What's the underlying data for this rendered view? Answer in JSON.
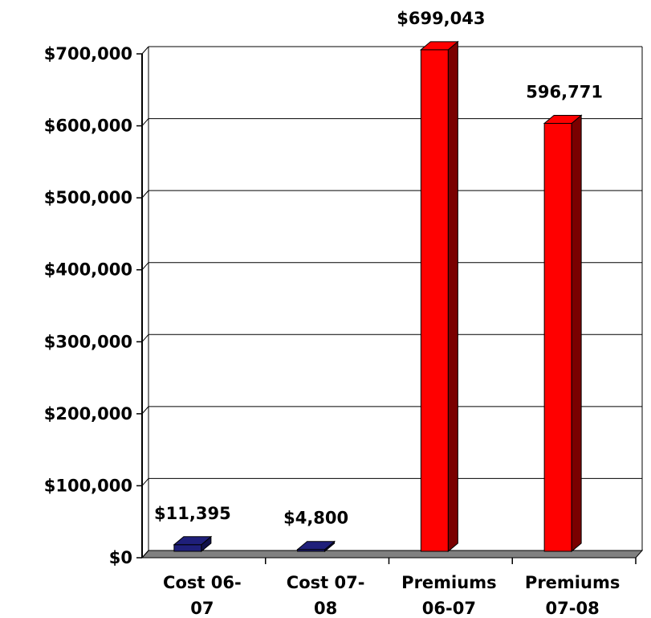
{
  "chart_data": {
    "type": "bar",
    "title": "",
    "xlabel": "",
    "ylabel": "",
    "categories": [
      [
        "Cost 06-",
        "07"
      ],
      [
        "Cost 07-",
        "08"
      ],
      [
        "Premiums",
        "06-07"
      ],
      [
        "Premiums",
        "07-08"
      ]
    ],
    "values": [
      11395,
      4800,
      699043,
      596771
    ],
    "data_labels": [
      "$11,395",
      "$4,800",
      "$699,043",
      "596,771"
    ],
    "bar_colors": [
      "#1f1f7a",
      "#1f1f7a",
      "#ff0000",
      "#ff0000"
    ],
    "bar_side_colors": [
      "#10104a",
      "#10104a",
      "#7a0000",
      "#7a0000"
    ],
    "ylim": [
      0,
      700000
    ],
    "yticks": [
      0,
      100000,
      200000,
      300000,
      400000,
      500000,
      600000,
      700000
    ],
    "ytick_labels": [
      "$0",
      "$100,000",
      "$200,000",
      "$300,000",
      "$400,000",
      "$500,000",
      "$600,000",
      "$700,000"
    ],
    "grid": true,
    "legend": "none",
    "style": "3d-column"
  }
}
